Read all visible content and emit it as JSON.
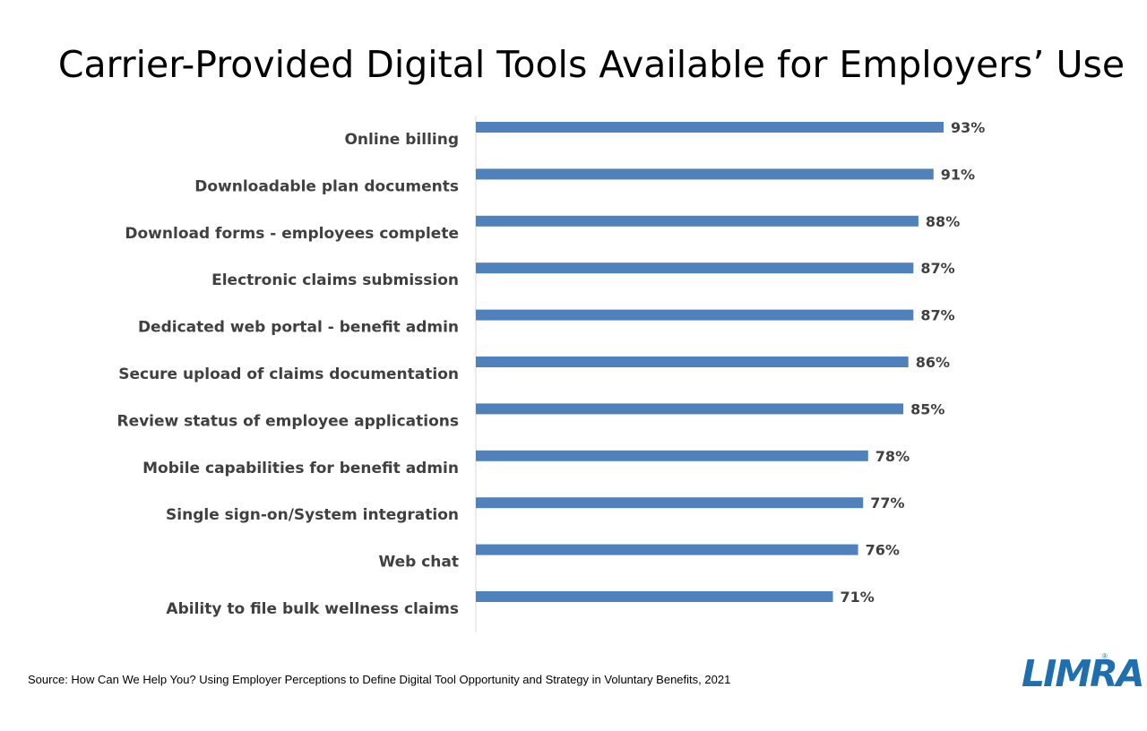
{
  "chart_data": {
    "type": "bar",
    "orientation": "horizontal",
    "title": "Carrier-Provided Digital Tools Available for Employers’ Use",
    "categories": [
      "Online billing",
      "Downloadable plan documents",
      "Download forms - employees complete",
      "Electronic claims submission",
      "Dedicated web portal - benefit admin",
      "Secure upload of claims documentation",
      "Review status of employee applications",
      "Mobile capabilities for benefit admin",
      "Single sign-on/System integration",
      "Web chat",
      "Ability to file bulk wellness claims"
    ],
    "values": [
      93,
      91,
      88,
      87,
      87,
      86,
      85,
      78,
      77,
      76,
      71
    ],
    "value_labels": [
      "93%",
      "91%",
      "88%",
      "87%",
      "87%",
      "86%",
      "85%",
      "78%",
      "77%",
      "76%",
      "71%"
    ],
    "xlim": [
      0,
      100
    ],
    "grid": false,
    "bar_color": "#4f81bd"
  },
  "footer": {
    "source": "Source: How Can We Help You? Using Employer Perceptions to Define Digital Tool Opportunity and Strategy in Voluntary Benefits, 2021",
    "logo_text": "LIMRA"
  }
}
